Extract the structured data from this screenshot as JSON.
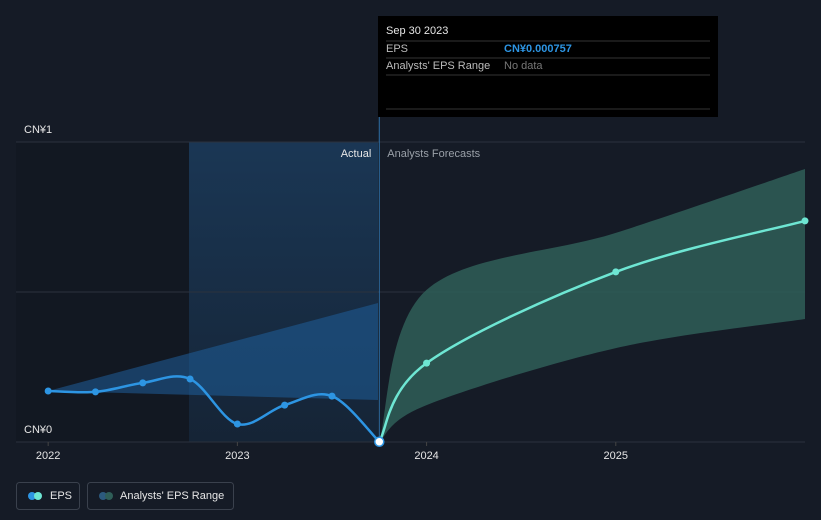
{
  "chart_data": {
    "type": "line",
    "tooltip": {
      "date": "Sep 30 2023",
      "rows": [
        [
          "EPS",
          "CN¥0.000757"
        ],
        [
          "Analysts' EPS Range",
          "No data"
        ]
      ]
    },
    "labels": {
      "actual": "Actual",
      "forecast": "Analysts Forecasts"
    },
    "xlim": [
      2021.83,
      2026
    ],
    "xticks": [
      2022,
      2023,
      2024,
      2025
    ],
    "ylim": [
      0,
      1
    ],
    "yticks": [
      {
        "value": 0,
        "label": "CN¥0"
      },
      {
        "value": 1,
        "label": "CN¥1"
      }
    ],
    "ygrid": [
      0,
      0.5,
      1
    ],
    "divider_x": 2023.75,
    "series": [
      {
        "name": "EPS",
        "color": "#2d95e3",
        "forecast_color": "#6ee6d3",
        "x": [
          2022,
          2022.25,
          2022.5,
          2022.75,
          2023,
          2023.25,
          2023.5,
          2023.75,
          2024,
          2025,
          2026
        ],
        "values": [
          0.17,
          0.167,
          0.197,
          0.21,
          0.06,
          0.123,
          0.153,
          0.000757,
          0.263,
          0.567,
          0.737
        ]
      }
    ],
    "range": {
      "name": "Analysts' EPS Range",
      "color": "#2f5e58",
      "x": [
        2023.75,
        2024,
        2025,
        2026
      ],
      "low": [
        0.000757,
        0.123,
        0.313,
        0.41
      ],
      "high": [
        0.000757,
        0.507,
        0.697,
        0.91
      ]
    }
  }
}
